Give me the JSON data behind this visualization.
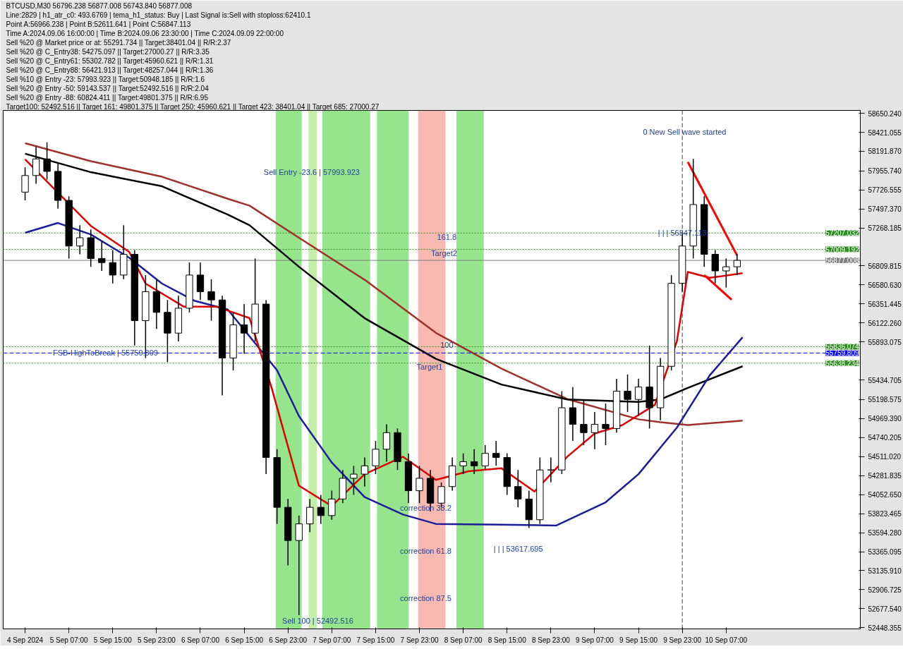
{
  "chart_data": {
    "type": "candlestick",
    "grid": false,
    "xlim": [
      "2024-09-04T19:00",
      "2024-09-11T07:30"
    ],
    "ylim": [
      52434,
      58685
    ],
    "xticks": [
      {
        "value": "2024-09-04T23:00",
        "label": "4 Sep 2024"
      },
      {
        "value": "2024-09-05T07:00",
        "label": "5 Sep 07:00"
      },
      {
        "value": "2024-09-05T15:00",
        "label": "5 Sep 15:00"
      },
      {
        "value": "2024-09-05T23:00",
        "label": "5 Sep 23:00"
      },
      {
        "value": "2024-09-06T07:00",
        "label": "6 Sep 07:00"
      },
      {
        "value": "2024-09-06T15:00",
        "label": "6 Sep 15:00"
      },
      {
        "value": "2024-09-06T23:00",
        "label": "6 Sep 23:00"
      },
      {
        "value": "2024-09-07T07:00",
        "label": "7 Sep 07:00"
      },
      {
        "value": "2024-09-07T15:00",
        "label": "7 Sep 15:00"
      },
      {
        "value": "2024-09-07T23:00",
        "label": "7 Sep 23:00"
      },
      {
        "value": "2024-09-08T07:00",
        "label": "8 Sep 07:00"
      },
      {
        "value": "2024-09-08T15:00",
        "label": "8 Sep 15:00"
      },
      {
        "value": "2024-09-08T23:00",
        "label": "8 Sep 23:00"
      },
      {
        "value": "2024-09-09T07:00",
        "label": "9 Sep 07:00"
      },
      {
        "value": "2024-09-09T15:00",
        "label": "9 Sep 15:00"
      },
      {
        "value": "2024-09-09T23:00",
        "label": "9 Sep 23:00"
      },
      {
        "value": "2024-09-10T07:00",
        "label": "10 Sep 07:00"
      }
    ],
    "yticks": [
      {
        "value": 58650.24,
        "label": "58650.240"
      },
      {
        "value": 58421.055,
        "label": "58421.055"
      },
      {
        "value": 58191.87,
        "label": "58191.870"
      },
      {
        "value": 57955.74,
        "label": "57955.740"
      },
      {
        "value": 57726.555,
        "label": "57726.555"
      },
      {
        "value": 57497.37,
        "label": "57497.370"
      },
      {
        "value": 57268.185,
        "label": "57268.185"
      },
      {
        "value": 56809.815,
        "label": "56809.815"
      },
      {
        "value": 56580.63,
        "label": "56580.630"
      },
      {
        "value": 56351.445,
        "label": "56351.445"
      },
      {
        "value": 56122.26,
        "label": "56122.260"
      },
      {
        "value": 55893.075,
        "label": "55893.075"
      },
      {
        "value": 55434.705,
        "label": "55434.705"
      },
      {
        "value": 55198.575,
        "label": "55198.575"
      },
      {
        "value": 54969.39,
        "label": "54969.390"
      },
      {
        "value": 54740.205,
        "label": "54740.205"
      },
      {
        "value": 54511.02,
        "label": "54511.020"
      },
      {
        "value": 54281.835,
        "label": "54281.835"
      },
      {
        "value": 54052.65,
        "label": "54052.650"
      },
      {
        "value": 53823.465,
        "label": "53823.465"
      },
      {
        "value": 53594.28,
        "label": "53594.280"
      },
      {
        "value": 53365.095,
        "label": "53365.095"
      },
      {
        "value": 53135.91,
        "label": "53135.910"
      },
      {
        "value": 52906.725,
        "label": "52906.725"
      },
      {
        "value": 52677.54,
        "label": "52677.540"
      },
      {
        "value": 52448.355,
        "label": "52448.355"
      }
    ],
    "x": [
      "2024-09-04T23:00",
      "2024-09-05T01:00",
      "2024-09-05T03:00",
      "2024-09-05T05:00",
      "2024-09-05T07:00",
      "2024-09-05T09:00",
      "2024-09-05T11:00",
      "2024-09-05T13:00",
      "2024-09-05T15:00",
      "2024-09-05T17:00",
      "2024-09-05T19:00",
      "2024-09-05T21:00",
      "2024-09-05T23:00",
      "2024-09-06T01:00",
      "2024-09-06T03:00",
      "2024-09-06T05:00",
      "2024-09-06T07:00",
      "2024-09-06T09:00",
      "2024-09-06T11:00",
      "2024-09-06T13:00",
      "2024-09-06T15:00",
      "2024-09-06T17:00",
      "2024-09-06T19:00",
      "2024-09-06T21:00",
      "2024-09-06T23:00",
      "2024-09-07T01:00",
      "2024-09-07T03:00",
      "2024-09-07T05:00",
      "2024-09-07T07:00",
      "2024-09-07T09:00",
      "2024-09-07T11:00",
      "2024-09-07T13:00",
      "2024-09-07T15:00",
      "2024-09-07T17:00",
      "2024-09-07T19:00",
      "2024-09-07T21:00",
      "2024-09-07T23:00",
      "2024-09-08T01:00",
      "2024-09-08T03:00",
      "2024-09-08T05:00",
      "2024-09-08T07:00",
      "2024-09-08T09:00",
      "2024-09-08T11:00",
      "2024-09-08T13:00",
      "2024-09-08T15:00",
      "2024-09-08T17:00",
      "2024-09-08T19:00",
      "2024-09-08T21:00",
      "2024-09-08T23:00",
      "2024-09-09T01:00",
      "2024-09-09T03:00",
      "2024-09-09T05:00",
      "2024-09-09T07:00",
      "2024-09-09T09:00",
      "2024-09-09T11:00",
      "2024-09-09T13:00",
      "2024-09-09T15:00",
      "2024-09-09T17:00",
      "2024-09-09T19:00",
      "2024-09-09T21:00",
      "2024-09-09T23:00",
      "2024-09-10T01:00",
      "2024-09-10T03:00",
      "2024-09-10T05:00",
      "2024-09-10T07:00",
      "2024-09-10T09:00"
    ],
    "ohlc": [
      [
        57700,
        58000,
        57600,
        57900
      ],
      [
        57900,
        58250,
        57800,
        58100
      ],
      [
        58100,
        58300,
        57850,
        57950
      ],
      [
        57950,
        58050,
        57500,
        57600
      ],
      [
        57600,
        57650,
        56900,
        57050
      ],
      [
        57050,
        57300,
        56950,
        57150
      ],
      [
        57150,
        57250,
        56800,
        56900
      ],
      [
        56900,
        57100,
        56750,
        56850
      ],
      [
        56850,
        57000,
        56600,
        56700
      ],
      [
        56700,
        57300,
        56650,
        56950
      ],
      [
        56950,
        57000,
        55850,
        56150
      ],
      [
        56150,
        56700,
        55700,
        56500
      ],
      [
        56500,
        56650,
        56050,
        56250
      ],
      [
        56250,
        56400,
        55650,
        56000
      ],
      [
        56000,
        56450,
        55900,
        56300
      ],
      [
        56300,
        56850,
        56250,
        56700
      ],
      [
        56700,
        56850,
        56400,
        56500
      ],
      [
        56500,
        56650,
        56150,
        56400
      ],
      [
        56400,
        56450,
        55250,
        55700
      ],
      [
        55700,
        56250,
        55550,
        56100
      ],
      [
        56100,
        56350,
        55750,
        56000
      ],
      [
        56000,
        56900,
        55900,
        56350
      ],
      [
        56350,
        56400,
        54300,
        54500
      ],
      [
        54500,
        54600,
        53700,
        53900
      ],
      [
        53900,
        54000,
        53200,
        53500
      ],
      [
        53500,
        53800,
        52600,
        53700
      ],
      [
        53700,
        54000,
        53600,
        53900
      ],
      [
        53900,
        54050,
        53700,
        53800
      ],
      [
        53800,
        54100,
        53750,
        54000
      ],
      [
        54000,
        54350,
        53950,
        54250
      ],
      [
        54250,
        54400,
        54050,
        54300
      ],
      [
        54300,
        54500,
        54150,
        54400
      ],
      [
        54400,
        54700,
        54300,
        54600
      ],
      [
        54600,
        54900,
        54450,
        54800
      ],
      [
        54800,
        54850,
        54350,
        54450
      ],
      [
        54450,
        54550,
        53950,
        54100
      ],
      [
        54100,
        54400,
        53950,
        54250
      ],
      [
        54250,
        54350,
        53850,
        53950
      ],
      [
        53950,
        54200,
        53900,
        54150
      ],
      [
        54150,
        54500,
        54100,
        54400
      ],
      [
        54400,
        54550,
        54300,
        54450
      ],
      [
        54450,
        54600,
        54300,
        54400
      ],
      [
        54400,
        54650,
        54350,
        54550
      ],
      [
        54550,
        54700,
        54400,
        54500
      ],
      [
        54500,
        54550,
        54050,
        54150
      ],
      [
        54150,
        54350,
        53900,
        54000
      ],
      [
        54000,
        54100,
        53650,
        53750
      ],
      [
        53750,
        54500,
        53700,
        54350
      ],
      [
        54350,
        54500,
        54200,
        54350
      ],
      [
        54350,
        55300,
        54300,
        55100
      ],
      [
        55100,
        55350,
        54700,
        54900
      ],
      [
        54900,
        55200,
        54650,
        54800
      ],
      [
        54800,
        55050,
        54600,
        54900
      ],
      [
        54900,
        55150,
        54650,
        54850
      ],
      [
        54850,
        55450,
        54800,
        55300
      ],
      [
        55300,
        55500,
        55050,
        55200
      ],
      [
        55200,
        55450,
        55000,
        55350
      ],
      [
        55350,
        55850,
        54850,
        55100
      ],
      [
        55100,
        55700,
        54950,
        55600
      ],
      [
        55600,
        56700,
        55550,
        56600
      ],
      [
        56600,
        57200,
        56500,
        57050
      ],
      [
        57050,
        58100,
        56900,
        57550
      ],
      [
        57550,
        57650,
        56800,
        56950
      ],
      [
        56950,
        57000,
        56600,
        56750
      ],
      [
        56750,
        56900,
        56550,
        56800
      ],
      [
        56800,
        56950,
        56700,
        56877.008
      ]
    ],
    "series": [
      {
        "type": "line",
        "color": "#a0302a",
        "x": [
          "2024-09-04T23:00",
          "2024-09-05T11:00",
          "2024-09-06T00:00",
          "2024-09-06T12:00",
          "2024-09-06T16:00",
          "2024-09-07T01:00",
          "2024-09-07T13:00",
          "2024-09-08T02:00",
          "2024-09-08T14:00",
          "2024-09-09T02:00",
          "2024-09-09T15:00",
          "2024-09-09T19:00",
          "2024-09-10T00:00",
          "2024-09-10T10:00"
        ],
        "values": [
          58290,
          58073,
          57885,
          57620,
          57536,
          57150,
          56643,
          56003,
          55571,
          55205,
          54961,
          54926,
          54891,
          54946
        ]
      },
      {
        "type": "line",
        "color": "#000000",
        "x": [
          "2024-09-04T23:00",
          "2024-09-05T11:00",
          "2024-09-06T00:00",
          "2024-09-06T12:00",
          "2024-09-06T16:00",
          "2024-09-07T01:00",
          "2024-09-07T13:00",
          "2024-09-08T02:00",
          "2024-09-08T14:00",
          "2024-09-09T02:00",
          "2024-09-09T15:00",
          "2024-09-09T19:00",
          "2024-09-10T00:00",
          "2024-09-10T10:00"
        ],
        "values": [
          58163,
          57940,
          57770,
          57430,
          57300,
          56800,
          56180,
          55690,
          55380,
          55200,
          55170,
          55200,
          55340,
          55600
        ]
      },
      {
        "type": "line",
        "color": "#1c1c9a",
        "x": [
          "2024-09-04T23:00",
          "2024-09-05T05:00",
          "2024-09-05T11:00",
          "2024-09-05T18:00",
          "2024-09-06T00:00",
          "2024-09-06T06:00",
          "2024-09-06T12:00",
          "2024-09-06T21:00",
          "2024-09-07T01:00",
          "2024-09-07T07:00",
          "2024-09-07T13:00",
          "2024-09-07T20:00",
          "2024-09-08T02:00",
          "2024-09-08T14:00",
          "2024-09-09T00:00",
          "2024-09-09T09:00",
          "2024-09-09T15:00",
          "2024-09-09T22:00",
          "2024-09-10T04:00",
          "2024-09-10T10:00"
        ],
        "values": [
          57210,
          57328,
          57189,
          56910,
          56597,
          56388,
          56284,
          55553,
          55000,
          54440,
          54023,
          53813,
          53700,
          53690,
          53680,
          53960,
          54300,
          54860,
          55490,
          55950
        ]
      },
      {
        "type": "line",
        "color": "#e00000",
        "x": [
          "2024-09-04T23:00",
          "2024-09-05T11:00",
          "2024-09-05T18:00",
          "2024-09-05T21:00",
          "2024-09-06T04:00",
          "2024-09-06T10:00",
          "2024-09-06T16:00",
          "2024-09-06T20:00",
          "2024-09-07T01:00",
          "2024-09-07T07:00",
          "2024-09-07T13:00",
          "2024-09-07T20:00",
          "2024-09-08T02:00",
          "2024-09-08T08:00",
          "2024-09-08T14:00",
          "2024-09-08T20:00",
          "2024-09-09T02:00",
          "2024-09-09T07:00",
          "2024-09-09T12:00",
          "2024-09-09T18:00",
          "2024-09-09T22:00",
          "2024-09-10T00:00",
          "2024-09-10T04:00",
          "2024-09-10T10:00"
        ],
        "values": [
          58094,
          57293,
          56980,
          56597,
          56318,
          56318,
          56180,
          55344,
          54160,
          53915,
          54300,
          54510,
          54230,
          54335,
          54370,
          54090,
          54510,
          54790,
          54890,
          55135,
          55900,
          56737,
          56667,
          56722
        ]
      },
      {
        "type": "line",
        "color": "#ff0000",
        "x": [
          "2024-09-10T00:00",
          "2024-09-10T09:00"
        ],
        "values": [
          58063,
          56936
        ]
      },
      {
        "type": "line",
        "color": "#ff0000",
        "x": [
          "2024-09-10T03:00",
          "2024-09-10T08:00"
        ],
        "values": [
          56701,
          56402
        ]
      }
    ],
    "ref_lines": [
      {
        "axis": "y",
        "value": 57207.032,
        "label": "57207.032",
        "color": "#2e8b22",
        "line_style": "dotted"
      },
      {
        "axis": "y",
        "value": 57009.192,
        "label": "57009.192",
        "color": "#2e8b22",
        "line_style": "dotted"
      },
      {
        "axis": "y",
        "value": 56877.008,
        "label": "56877.008",
        "color": "#808080",
        "line_style": "solid"
      },
      {
        "axis": "y",
        "value": 55836.074,
        "label": "55836.074",
        "color": "#2e8b22",
        "line_style": "dotted"
      },
      {
        "axis": "y",
        "value": 55759.809,
        "label": "55759.809",
        "color": "#0000ff",
        "line_style": "dashed"
      },
      {
        "axis": "y",
        "value": 55638.234,
        "label": "55638.234",
        "color": "#2e8b22",
        "line_style": "dotted"
      },
      {
        "axis": "x",
        "value": "2024-09-09T23:00",
        "color": "#404040",
        "line_style": "dashed"
      }
    ],
    "bands": [
      {
        "axis": "x",
        "from": "2024-09-06T20:45",
        "to": "2024-09-07T01:30",
        "color": "#3fcf2f"
      },
      {
        "axis": "x",
        "from": "2024-09-07T02:45",
        "to": "2024-09-07T04:15",
        "color": "#8fe060"
      },
      {
        "axis": "x",
        "from": "2024-09-07T05:15",
        "to": "2024-09-07T14:00",
        "color": "#3fcf2f"
      },
      {
        "axis": "x",
        "from": "2024-09-07T15:15",
        "to": "2024-09-07T21:00",
        "color": "#3fcf2f"
      },
      {
        "axis": "x",
        "from": "2024-09-07T22:45",
        "to": "2024-09-08T03:45",
        "color": "#f28070"
      },
      {
        "axis": "x",
        "from": "2024-09-08T05:45",
        "to": "2024-09-08T10:45",
        "color": "#3fcf2f"
      }
    ],
    "annotations": [
      "BTCUSD,M30  56796.238 56877.008 56743.840 56877.008",
      "Line:2829 | h1_atr_c0: 493.6769 | tema_h1_status: Buy | Last Signal is:Sell with stoploss:62410.1",
      "Point A:56966.238 | Point B:52611.641 | Point C:56847.113",
      "Time A:2024.09.06 16:00:00 | Time B:2024.09.06 23:30:00 | Time C:2024.09.09 22:00:00",
      "Sell %20 @ Market price or at: 55291.734 || Target:38401.04 || R/R:2.37",
      "Sell %20 @ C_Entry38: 54275.097 || Target:27000.27 || R/R:3.35",
      "Sell %20 @ C_Entry61: 55302.782 || Target:45960.621 || R/R:1.31",
      "Sell %20 @ C_Entry88: 56421.913 || Target:48257.044 || R/R:1.36",
      "Sell %10 @ Entry -23: 57993.923 || Target:50948.185 || R/R:1.6",
      "Sell %20 @ Entry -50: 59143.537 || Target:52492.516 || R/R:2.04",
      "Sell %20 @ Entry -88: 60824.411 || Target:49801.375 || R/R:6.95",
      "Target100: 52492.516 || Target 161: 49801.375 || Target 250: 45960.621 || Target 423: 38401.04 || Target 685: 27000.27",
      "Sell Entry -23.6 | 57993.923",
      "0 New Sell wave started",
      "Target1",
      "correction 38.2",
      "correction 61.8",
      "correction 87.5",
      "| | | 53617.695",
      "Sell 100 | 52492.516",
      {
        "text": "| | | 56847.113",
        "x": "2024-09-09T23:00",
        "y": 57210
      },
      {
        "text": "161.8",
        "x": "2024-09-08T04:00",
        "y": 57160
      },
      {
        "text": "Target2",
        "x": "2024-09-08T03:30",
        "y": 56966
      },
      {
        "text": "100",
        "x": "2024-09-08T04:00",
        "y": 55860
      },
      {
        "text": "FSB-HighToBreak | 55759.809",
        "x": "2024-09-05T13:40",
        "y": 55759.809
      }
    ]
  }
}
